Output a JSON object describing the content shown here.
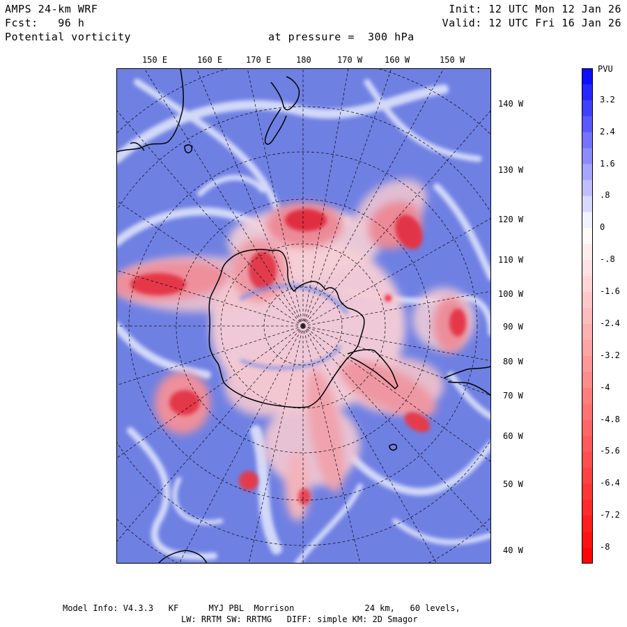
{
  "header": {
    "model": "AMPS 24-km WRF",
    "forecast": "Fcst:   96 h",
    "field": "Potential vorticity",
    "level": "at pressure =  300 hPa",
    "init": "Init: 12 UTC Mon 12 Jan 26",
    "valid": "Valid: 12 UTC Fri 16 Jan 26"
  },
  "top_longitudes": [
    "150 E",
    "160 E",
    "170 E",
    "180",
    "170 W",
    "160 W",
    "150 W"
  ],
  "right_longitudes": [
    "140 W",
    "130 W",
    "120 W",
    "110 W",
    "100 W",
    "90 W",
    "80 W",
    "70 W",
    "60 W",
    "50 W",
    "40 W"
  ],
  "colorbar": {
    "units": "PVU",
    "labels": [
      "3.2",
      "2.4",
      "1.6",
      ".8",
      "0",
      "-.8",
      "-1.6",
      "-2.4",
      "-3.2",
      "-4",
      "-4.8",
      "-5.6",
      "-6.4",
      "-7.2",
      "-8"
    ],
    "min": -8.4,
    "max": 4.0,
    "negative_color": "#ff0000",
    "positive_color": "#0000ff",
    "background_color": "#6f80e3"
  },
  "footer": {
    "line1": "Model Info: V4.3.3   KF      MYJ PBL  Morrison              24 km,   60 levels,",
    "line2": "LW: RRTM SW: RRTMG   DIFF: simple KM: 2D Smagor"
  }
}
